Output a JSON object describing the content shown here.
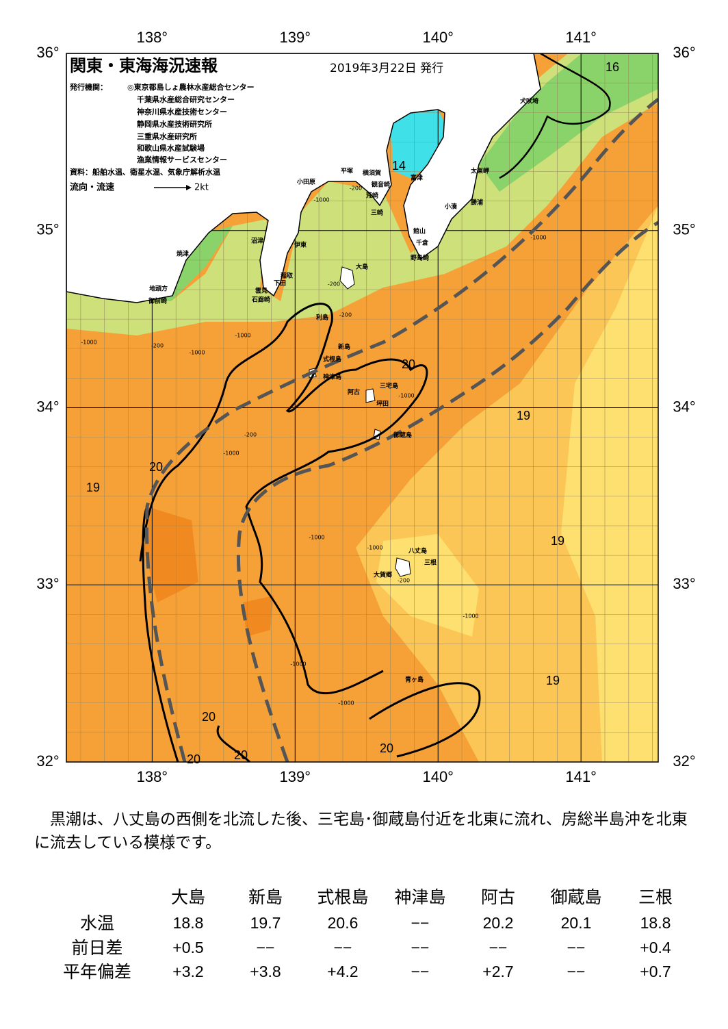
{
  "header": {
    "title": "関東・東海海況速報",
    "date": "2019年3月22日 発行",
    "issuer_label": "発行機関：",
    "issuers": [
      "◎東京都島しょ農林水産総合センター",
      "千葉県水産総合研究センター",
      "神奈川県水産技術センター",
      "静岡県水産技術研究所",
      "三重県水産研究所",
      "和歌山県水産試験場",
      "漁業情報サービスセンター"
    ],
    "source": "資料：船舶水温、衛星水温、気象庁解析水温",
    "legend_label": "流向・流速",
    "legend_scale": "2kt"
  },
  "map": {
    "xlim": [
      137.4,
      141.54
    ],
    "ylim": [
      32,
      36
    ],
    "lon_ticks": [
      {
        "value": 138,
        "label": "138°"
      },
      {
        "value": 139,
        "label": "139°"
      },
      {
        "value": 140,
        "label": "140°"
      },
      {
        "value": 141,
        "label": "141°"
      }
    ],
    "lat_ticks": [
      {
        "value": 36,
        "label": "36°"
      },
      {
        "value": 35,
        "label": "35°"
      },
      {
        "value": 34,
        "label": "34°"
      },
      {
        "value": 33,
        "label": "33°"
      },
      {
        "value": 32,
        "label": "32°"
      }
    ],
    "place_names": [
      "犬吠埼",
      "太東岬",
      "勝浦",
      "小湊",
      "館山",
      "千倉",
      "野島崎",
      "富津",
      "横須賀",
      "観音崎",
      "荒崎",
      "三崎",
      "平塚",
      "小田原",
      "沼津",
      "伊東",
      "稲取",
      "下田",
      "雲見",
      "石廊崎",
      "焼津",
      "地頭方",
      "御前崎",
      "大島",
      "利島",
      "新島",
      "式根島",
      "神津島",
      "三宅島",
      "阿古",
      "坪田",
      "御蔵島",
      "八丈島",
      "三根",
      "大賀郷",
      "青ヶ島"
    ],
    "isotherm_labels": [
      "16",
      "14",
      "20",
      "19",
      "20",
      "19",
      "19",
      "19",
      "20",
      "20",
      "20",
      "20"
    ],
    "depth_labels": [
      "-200",
      "-1000",
      "-1000",
      "-200",
      "-200",
      "-1000",
      "-1000",
      "-200",
      "-1000",
      "-1000",
      "-200",
      "-1000",
      "-1000",
      "-1000",
      "-200",
      "-1000",
      "-1000",
      "-1000"
    ]
  },
  "summary": "黒潮は、八丈島の西側を北流した後、三宅島･御蔵島付近を北東に流れ、房総半島沖を北東に流去している模様です。",
  "table": {
    "columns": [
      "大島",
      "新島",
      "式根島",
      "神津島",
      "阿古",
      "御蔵島",
      "三根"
    ],
    "rows": [
      {
        "label": "水温",
        "values": [
          "18.8",
          "19.7",
          "20.6",
          "−−",
          "20.2",
          "20.1",
          "18.8"
        ]
      },
      {
        "label": "前日差",
        "values": [
          "+0.5",
          "−−",
          "−−",
          "−−",
          "−−",
          "−−",
          "+0.4"
        ]
      },
      {
        "label": "平年偏差",
        "values": [
          "+3.2",
          "+3.8",
          "+4.2",
          "−−",
          "+2.7",
          "−−",
          "+0.7"
        ]
      }
    ]
  }
}
